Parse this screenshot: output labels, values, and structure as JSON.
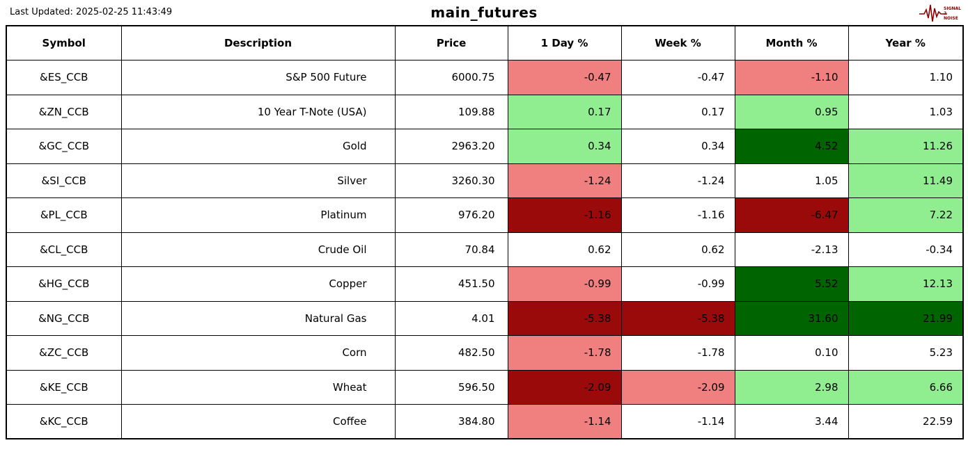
{
  "page": {
    "last_updated": "Last Updated: 2025-02-25 11:43:49",
    "title": "main_futures"
  },
  "logo": {
    "text_top": "SIGNAL",
    "text_mid": "2",
    "text_bottom": "NOISE",
    "color": "#8b0000"
  },
  "chart_data": {
    "type": "table",
    "title": "main_futures",
    "columns": [
      "Symbol",
      "Description",
      "Price",
      "1 Day %",
      "Week %",
      "Month %",
      "Year %"
    ],
    "color_legend": {
      "none": "#FFFFFF",
      "lightred": "#F08080",
      "darkred": "#9B0A0A",
      "lightgreen": "#90EE90",
      "darkgreen": "#006400"
    },
    "rows": [
      {
        "symbol": "&ES_CCB",
        "description": "S&P 500 Future",
        "price": "6000.75",
        "pcts": [
          {
            "v": "-0.47",
            "bg": "lightred"
          },
          {
            "v": "-0.47",
            "bg": "none"
          },
          {
            "v": "-1.10",
            "bg": "lightred"
          },
          {
            "v": "1.10",
            "bg": "none"
          }
        ]
      },
      {
        "symbol": "&ZN_CCB",
        "description": "10 Year T-Note (USA)",
        "price": "109.88",
        "pcts": [
          {
            "v": "0.17",
            "bg": "lightgreen"
          },
          {
            "v": "0.17",
            "bg": "none"
          },
          {
            "v": "0.95",
            "bg": "lightgreen"
          },
          {
            "v": "1.03",
            "bg": "none"
          }
        ]
      },
      {
        "symbol": "&GC_CCB",
        "description": "Gold",
        "price": "2963.20",
        "pcts": [
          {
            "v": "0.34",
            "bg": "lightgreen"
          },
          {
            "v": "0.34",
            "bg": "none"
          },
          {
            "v": "4.52",
            "bg": "darkgreen"
          },
          {
            "v": "11.26",
            "bg": "lightgreen"
          }
        ]
      },
      {
        "symbol": "&SI_CCB",
        "description": "Silver",
        "price": "3260.30",
        "pcts": [
          {
            "v": "-1.24",
            "bg": "lightred"
          },
          {
            "v": "-1.24",
            "bg": "none"
          },
          {
            "v": "1.05",
            "bg": "none"
          },
          {
            "v": "11.49",
            "bg": "lightgreen"
          }
        ]
      },
      {
        "symbol": "&PL_CCB",
        "description": "Platinum",
        "price": "976.20",
        "pcts": [
          {
            "v": "-1.16",
            "bg": "darkred"
          },
          {
            "v": "-1.16",
            "bg": "none"
          },
          {
            "v": "-6.47",
            "bg": "darkred"
          },
          {
            "v": "7.22",
            "bg": "lightgreen"
          }
        ]
      },
      {
        "symbol": "&CL_CCB",
        "description": "Crude Oil",
        "price": "70.84",
        "pcts": [
          {
            "v": "0.62",
            "bg": "none"
          },
          {
            "v": "0.62",
            "bg": "none"
          },
          {
            "v": "-2.13",
            "bg": "none"
          },
          {
            "v": "-0.34",
            "bg": "none"
          }
        ]
      },
      {
        "symbol": "&HG_CCB",
        "description": "Copper",
        "price": "451.50",
        "pcts": [
          {
            "v": "-0.99",
            "bg": "lightred"
          },
          {
            "v": "-0.99",
            "bg": "none"
          },
          {
            "v": "5.52",
            "bg": "darkgreen"
          },
          {
            "v": "12.13",
            "bg": "lightgreen"
          }
        ]
      },
      {
        "symbol": "&NG_CCB",
        "description": "Natural Gas",
        "price": "4.01",
        "pcts": [
          {
            "v": "-5.38",
            "bg": "darkred"
          },
          {
            "v": "-5.38",
            "bg": "darkred"
          },
          {
            "v": "31.60",
            "bg": "darkgreen"
          },
          {
            "v": "21.99",
            "bg": "darkgreen"
          }
        ]
      },
      {
        "symbol": "&ZC_CCB",
        "description": "Corn",
        "price": "482.50",
        "pcts": [
          {
            "v": "-1.78",
            "bg": "lightred"
          },
          {
            "v": "-1.78",
            "bg": "none"
          },
          {
            "v": "0.10",
            "bg": "none"
          },
          {
            "v": "5.23",
            "bg": "none"
          }
        ]
      },
      {
        "symbol": "&KE_CCB",
        "description": "Wheat",
        "price": "596.50",
        "pcts": [
          {
            "v": "-2.09",
            "bg": "darkred"
          },
          {
            "v": "-2.09",
            "bg": "lightred"
          },
          {
            "v": "2.98",
            "bg": "lightgreen"
          },
          {
            "v": "6.66",
            "bg": "lightgreen"
          }
        ]
      },
      {
        "symbol": "&KC_CCB",
        "description": "Coffee",
        "price": "384.80",
        "pcts": [
          {
            "v": "-1.14",
            "bg": "lightred"
          },
          {
            "v": "-1.14",
            "bg": "none"
          },
          {
            "v": "3.44",
            "bg": "none"
          },
          {
            "v": "22.59",
            "bg": "none"
          }
        ]
      }
    ]
  }
}
